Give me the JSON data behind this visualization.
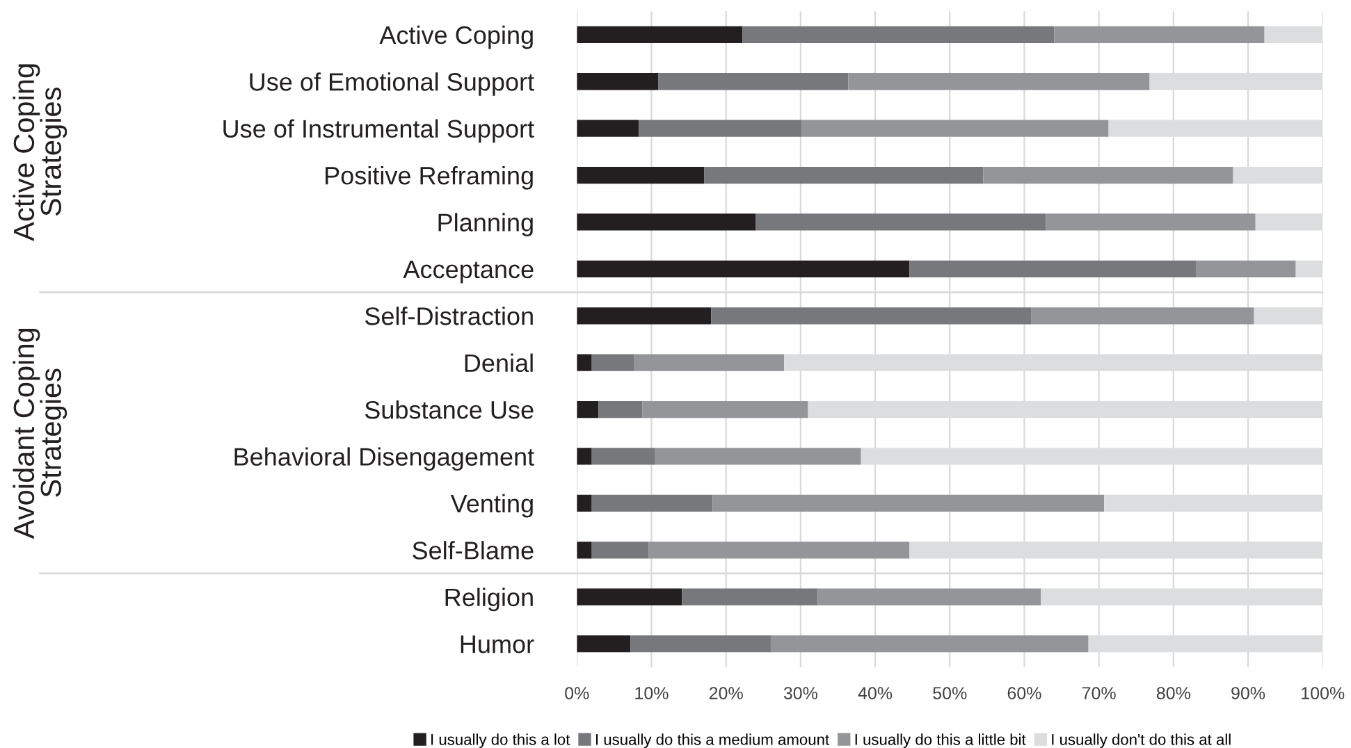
{
  "chart_data": {
    "type": "bar",
    "orientation": "horizontal",
    "stacked": true,
    "categories": [
      "Active Coping",
      "Use of Emotional Support",
      "Use of Instrumental Support",
      "Positive Reframing",
      "Planning",
      "Acceptance",
      "Self-Distraction",
      "Denial",
      "Substance Use",
      "Behavioral Disengagement",
      "Venting",
      "Self-Blame",
      "Religion",
      "Humor"
    ],
    "series": [
      {
        "name": "I usually do this a lot",
        "color": "#231f20",
        "values": [
          22.2,
          10.9,
          8.3,
          17.1,
          24.0,
          44.6,
          18.0,
          2.0,
          2.9,
          2.0,
          2.0,
          2.0,
          14.1,
          7.2
        ]
      },
      {
        "name": "I usually do this a medium amount",
        "color": "#77787b",
        "values": [
          41.8,
          25.5,
          21.8,
          37.4,
          38.9,
          38.4,
          42.9,
          5.7,
          5.9,
          8.5,
          16.2,
          7.6,
          18.2,
          18.8
        ]
      },
      {
        "name": "I usually do this a little bit",
        "color": "#939598",
        "values": [
          28.2,
          40.4,
          41.2,
          33.5,
          28.1,
          13.4,
          29.9,
          20.1,
          22.2,
          27.6,
          52.5,
          35.0,
          29.9,
          42.6
        ]
      },
      {
        "name": "I usually don't do this at all",
        "color": "#dcddde",
        "values": [
          7.8,
          23.2,
          28.7,
          12.0,
          9.0,
          3.6,
          9.2,
          72.2,
          69.0,
          61.9,
          29.3,
          55.4,
          37.8,
          31.4
        ]
      }
    ],
    "xlim": [
      0,
      100
    ],
    "xticks": [
      {
        "value": 0,
        "label": "0%"
      },
      {
        "value": 10,
        "label": "10%"
      },
      {
        "value": 20,
        "label": "20%"
      },
      {
        "value": 30,
        "label": "30%"
      },
      {
        "value": 40,
        "label": "40%"
      },
      {
        "value": 50,
        "label": "50%"
      },
      {
        "value": 60,
        "label": "60%"
      },
      {
        "value": 70,
        "label": "70%"
      },
      {
        "value": 80,
        "label": "80%"
      },
      {
        "value": 90,
        "label": "90%"
      },
      {
        "value": 100,
        "label": "100%"
      }
    ],
    "grid": "x",
    "legend": "bottom",
    "annotations": [
      "Active Coping\nStrategies",
      "Avoidant Coping\nStrategies"
    ]
  }
}
